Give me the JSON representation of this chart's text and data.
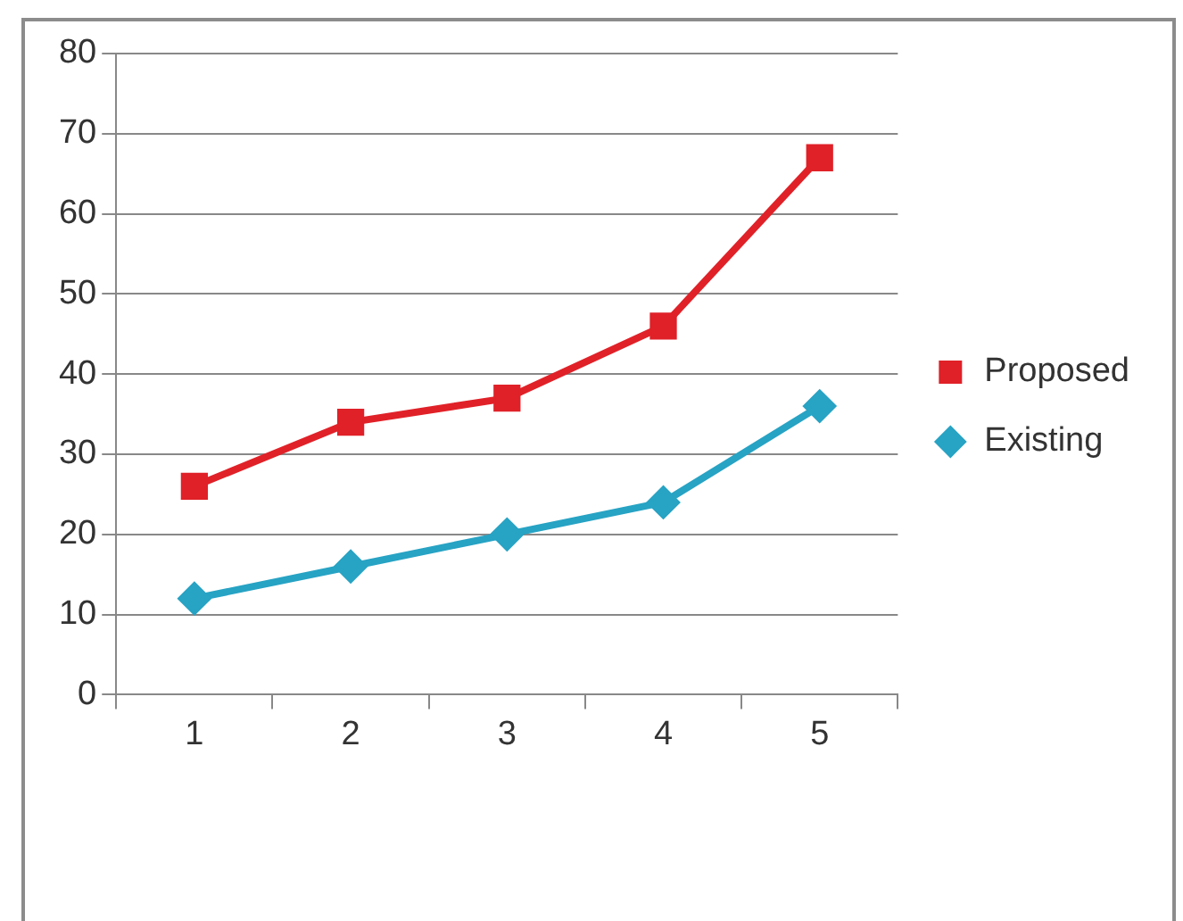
{
  "chart_data": {
    "type": "line",
    "categories": [
      "1",
      "2",
      "3",
      "4",
      "5"
    ],
    "series": [
      {
        "name": "Proposed",
        "color": "#e02128",
        "values": [
          26,
          34,
          37,
          46,
          67
        ],
        "marker": "square"
      },
      {
        "name": "Existing",
        "color": "#27a3c4",
        "values": [
          12,
          16,
          20,
          24,
          36
        ],
        "marker": "diamond"
      }
    ],
    "ylim": [
      0,
      80
    ],
    "yticks": [
      0,
      10,
      20,
      30,
      40,
      50,
      60,
      70,
      80
    ],
    "grid": "y",
    "legend": "right",
    "line_style": "solid"
  }
}
